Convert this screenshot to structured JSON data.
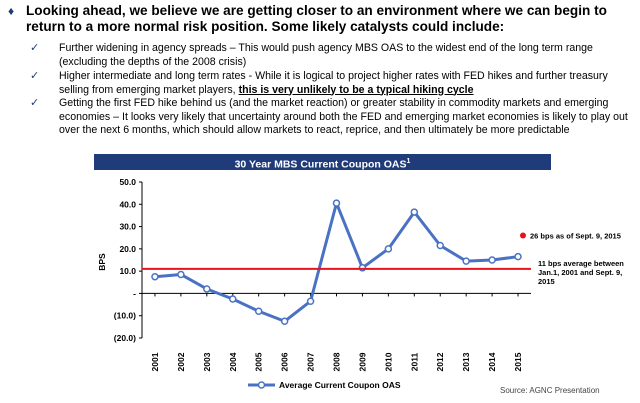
{
  "headline": {
    "marker": "♦",
    "text": "Looking ahead, we believe we are getting closer to an environment where we can begin to return to a more normal risk position. Some likely catalysts could include:"
  },
  "bullets": [
    {
      "marker": "✓",
      "text": "Further widening in agency spreads – This would push agency MBS OAS to the widest end of the long term range (excluding the depths of the 2008 crisis)",
      "emphasis": ""
    },
    {
      "marker": "✓",
      "text": "Higher intermediate and long term rates -  While it is logical to project higher rates with FED hikes and further treasury selling from emerging market players, ",
      "emphasis": "this is very unlikely to be a typical hiking cycle"
    },
    {
      "marker": "✓",
      "text": "Getting the first FED hike behind us (and the market reaction) or greater stability in commodity markets and emerging economies – It looks very likely that uncertainty around both the FED and emerging market economies is likely to play out over the next 6 months, which should allow markets to react, reprice, and then ultimately be more predictable",
      "emphasis": ""
    }
  ],
  "source": "Source: AGNC Presentation",
  "colors": {
    "title_bar": "#1f3b7a",
    "series_line": "#4a72c4",
    "average_line": "#e8141c",
    "current_point": "#e8141c"
  },
  "chart_data": {
    "type": "line",
    "title": "30 Year MBS Current Coupon OAS",
    "title_superscript": "1",
    "ylabel": "BPS",
    "xlabel": "",
    "ylim": [
      -20,
      50
    ],
    "yticks": [
      50,
      40,
      30,
      20,
      10,
      0,
      -10,
      -20
    ],
    "ytick_labels": [
      "50.0",
      "40.0",
      "30.0",
      "20.0",
      "10.0",
      "-",
      "(10.0)",
      "(20.0)"
    ],
    "categories": [
      "2001",
      "2002",
      "2003",
      "2004",
      "2005",
      "2006",
      "2007",
      "2008",
      "2009",
      "2010",
      "2011",
      "2012",
      "2013",
      "2014",
      "2015"
    ],
    "series": [
      {
        "name": "Average Current Coupon OAS",
        "values": [
          7.5,
          8.5,
          2,
          -2.5,
          -8,
          -12.5,
          -3.5,
          40.5,
          11.5,
          20,
          36.5,
          21.5,
          14.5,
          15,
          16.5
        ]
      }
    ],
    "average_line": {
      "value": 11,
      "label": "11 bps average between Jan.1, 2001 and Sept. 9, 2015"
    },
    "current_point": {
      "value": 26,
      "label": "26 bps as of Sept. 9, 2015"
    },
    "legend_position": "bottom",
    "grid": false
  }
}
